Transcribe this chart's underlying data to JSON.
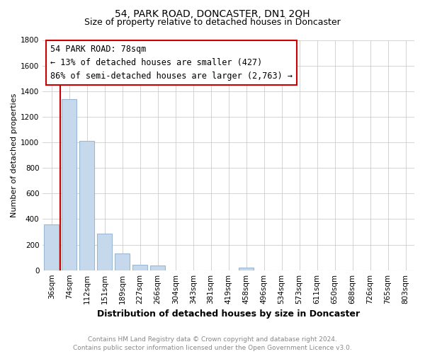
{
  "title": "54, PARK ROAD, DONCASTER, DN1 2QH",
  "subtitle": "Size of property relative to detached houses in Doncaster",
  "xlabel": "Distribution of detached houses by size in Doncaster",
  "ylabel": "Number of detached properties",
  "bar_labels": [
    "36sqm",
    "74sqm",
    "112sqm",
    "151sqm",
    "189sqm",
    "227sqm",
    "266sqm",
    "304sqm",
    "343sqm",
    "381sqm",
    "419sqm",
    "458sqm",
    "496sqm",
    "534sqm",
    "573sqm",
    "611sqm",
    "650sqm",
    "688sqm",
    "726sqm",
    "765sqm",
    "803sqm"
  ],
  "bar_values": [
    360,
    1340,
    1010,
    285,
    130,
    45,
    38,
    0,
    0,
    0,
    0,
    20,
    0,
    0,
    0,
    0,
    0,
    0,
    0,
    0,
    0
  ],
  "bar_color": "#c6d9ec",
  "bar_edge_color": "#9ab8d4",
  "property_line_x": 0.5,
  "property_line_color": "#cc0000",
  "ylim": [
    0,
    1800
  ],
  "yticks": [
    0,
    200,
    400,
    600,
    800,
    1000,
    1200,
    1400,
    1600,
    1800
  ],
  "annotation_title": "54 PARK ROAD: 78sqm",
  "annotation_line1": "← 13% of detached houses are smaller (427)",
  "annotation_line2": "86% of semi-detached houses are larger (2,763) →",
  "annotation_box_color": "#ffffff",
  "annotation_border_color": "#cc0000",
  "footer_line1": "Contains HM Land Registry data © Crown copyright and database right 2024.",
  "footer_line2": "Contains public sector information licensed under the Open Government Licence v3.0.",
  "background_color": "#ffffff",
  "grid_color": "#cccccc",
  "title_fontsize": 10,
  "subtitle_fontsize": 9,
  "xlabel_fontsize": 9,
  "ylabel_fontsize": 8,
  "tick_fontsize": 7.5,
  "footer_fontsize": 6.5,
  "annotation_fontsize": 8.5
}
